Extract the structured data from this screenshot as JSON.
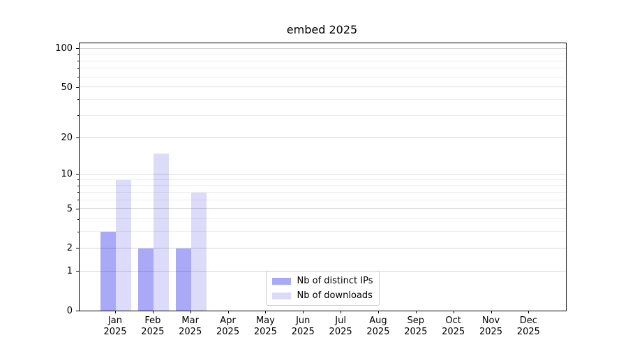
{
  "chart_data": {
    "type": "bar",
    "title": "embed 2025",
    "categories": [
      "Jan",
      "Feb",
      "Mar",
      "Apr",
      "May",
      "Jun",
      "Jul",
      "Aug",
      "Sep",
      "Oct",
      "Nov",
      "Dec"
    ],
    "x_year": "2025",
    "series": [
      {
        "name": "Nb of distinct IPs",
        "color": "#a9a9f7",
        "values": [
          3,
          2,
          2,
          0,
          0,
          0,
          0,
          0,
          0,
          0,
          0,
          0
        ]
      },
      {
        "name": "Nb of downloads",
        "color": "#dcdcfa",
        "values": [
          9,
          15,
          7,
          0,
          0,
          0,
          0,
          0,
          0,
          0,
          0,
          0
        ]
      }
    ],
    "y_axis": {
      "scale": "log1p",
      "ticks": [
        100,
        50,
        20,
        10,
        5,
        2,
        1,
        0
      ],
      "minor_ticks": [
        3,
        4,
        6,
        7,
        8,
        9,
        30,
        40,
        60,
        70,
        80,
        90
      ],
      "top": 110
    },
    "xlabel": "",
    "ylabel": "",
    "grid": "horizontal major+minor",
    "legend": {
      "location": "lower center",
      "entries": [
        "Nb of distinct IPs",
        "Nb of downloads"
      ]
    }
  },
  "colors": {
    "background": "#ffffff",
    "axis": "#000000",
    "grid_major": "#d6d6d6",
    "grid_minor": "#ededed",
    "series_ips": "#a9a9f7",
    "series_downloads": "#dcdcfa",
    "legend_border": "#cbcbcb"
  }
}
